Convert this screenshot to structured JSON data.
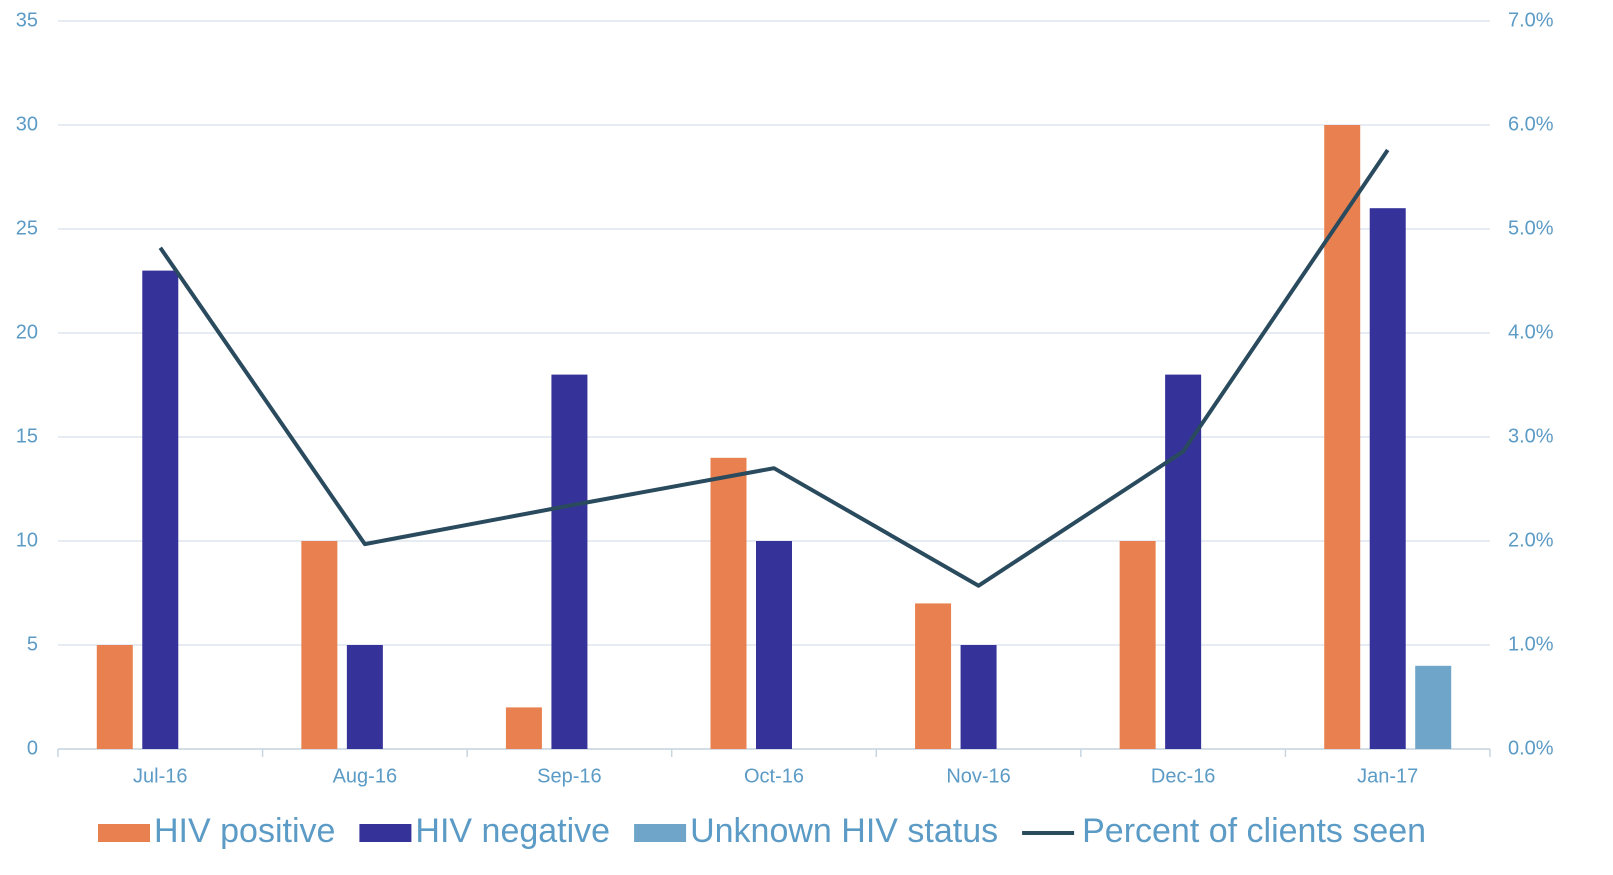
{
  "chart_data": {
    "type": "bar",
    "categories": [
      "Jul-16",
      "Aug-16",
      "Sep-16",
      "Oct-16",
      "Nov-16",
      "Dec-16",
      "Jan-17"
    ],
    "series": [
      {
        "name": "HIV positive",
        "color": "#e8814f",
        "values": [
          5,
          10,
          2,
          14,
          7,
          10,
          30
        ]
      },
      {
        "name": "HIV negative",
        "color": "#353299",
        "values": [
          23,
          5,
          18,
          10,
          5,
          18,
          26
        ]
      },
      {
        "name": "Unknown HIV status",
        "color": "#6fa5c8",
        "values": [
          0,
          0,
          0,
          0,
          0,
          0,
          4
        ]
      },
      {
        "name": "Percent of clients seen",
        "color": "#2a4a5e",
        "type": "line",
        "axis": "y2",
        "values": [
          4.82,
          1.97,
          2.34,
          2.7,
          1.57,
          2.86,
          5.76
        ]
      }
    ],
    "ylim": [
      0,
      35
    ],
    "yticks": [
      0,
      5,
      10,
      15,
      20,
      25,
      30,
      35
    ],
    "y2lim": [
      0,
      7
    ],
    "y2ticks": [
      {
        "value": 0,
        "label": "0.0%"
      },
      {
        "value": 1,
        "label": "1.0%"
      },
      {
        "value": 2,
        "label": "2.0%"
      },
      {
        "value": 3,
        "label": "3.0%"
      },
      {
        "value": 4,
        "label": "4.0%"
      },
      {
        "value": 5,
        "label": "5.0%"
      },
      {
        "value": 6,
        "label": "6.0%"
      },
      {
        "value": 7,
        "label": "7.0%"
      }
    ],
    "grid": true,
    "legend": "bottom"
  }
}
